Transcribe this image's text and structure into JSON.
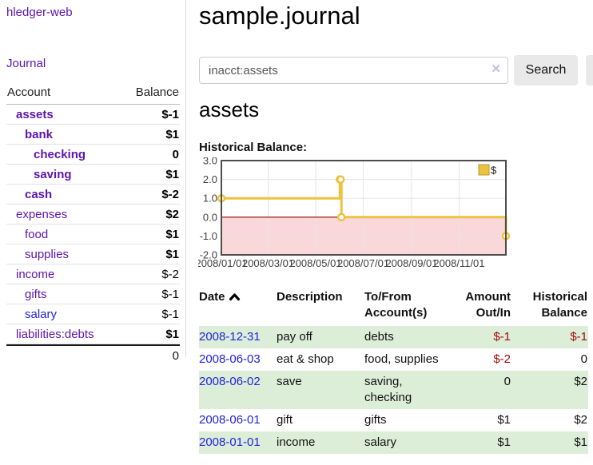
{
  "colors": {
    "purple": "#5c14ae",
    "bluelink": "#2222dd",
    "negstrong": "#a00a0a",
    "negsoft": "#c07c7c",
    "stripe": "#ddeed8"
  },
  "brand": "hledger-web",
  "nav": {
    "journal": "Journal"
  },
  "sidebar": {
    "account_header": "Account",
    "balance_header": "Balance",
    "rows": [
      {
        "account": "assets",
        "balance": "$-1",
        "depth": 1,
        "bold": true,
        "neg": "strong"
      },
      {
        "account": "bank",
        "balance": "$1",
        "depth": 2,
        "bold": true
      },
      {
        "account": "checking",
        "balance": "0",
        "depth": 3,
        "bold": true
      },
      {
        "account": "saving",
        "balance": "$1",
        "depth": 3,
        "bold": true
      },
      {
        "account": "cash",
        "balance": "$-2",
        "depth": 2,
        "bold": true,
        "neg": "strong"
      },
      {
        "account": "expenses",
        "balance": "$2",
        "depth": 1
      },
      {
        "account": "food",
        "balance": "$1",
        "depth": 2
      },
      {
        "account": "supplies",
        "balance": "$1",
        "depth": 2
      },
      {
        "account": "income",
        "balance": "$-2",
        "depth": 1,
        "neg": "soft"
      },
      {
        "account": "gifts",
        "balance": "$-1",
        "depth": 2,
        "neg": "soft"
      },
      {
        "account": "salary",
        "balance": "$-1",
        "depth": 2,
        "neg": "soft",
        "link": "blue"
      },
      {
        "account": "liabilities:debts",
        "balance": "$1",
        "depth": 1
      }
    ],
    "total": "0"
  },
  "main": {
    "title": "sample.journal",
    "account_title": "assets",
    "chart_label": "Historical Balance:"
  },
  "search": {
    "value": "inacct:assets",
    "clear_icon": "✕",
    "button": "Search",
    "help": "?"
  },
  "chart_data": {
    "type": "line",
    "step": true,
    "title": "Historical Balance:",
    "x_start": "2008-01-01",
    "x_end": "2008-12-31",
    "xticks": [
      "2008/01/01",
      "2008/03/01",
      "2008/05/01",
      "2008/07/01",
      "2008/09/01",
      "2008/11/01"
    ],
    "yticks": [
      "3.0",
      "2.0",
      "1.0",
      "0.0",
      "-1.0",
      "-2.0"
    ],
    "ylim": [
      -2,
      3
    ],
    "series": [
      {
        "name": "$",
        "color": "#edc240",
        "points": [
          [
            "2008-01-01",
            1
          ],
          [
            "2008-06-01",
            2
          ],
          [
            "2008-06-02",
            2
          ],
          [
            "2008-06-03",
            0
          ],
          [
            "2008-12-31",
            -1
          ]
        ]
      }
    ],
    "legend_position": "top-right",
    "grid": true,
    "grid_color": "#e5e5e5",
    "border_color": "#4d4d4d",
    "tick_color": "#3f3f3f",
    "zero_line_color": "#8d0000",
    "negative_region_fill": "#fad8da"
  },
  "register": {
    "headers": [
      {
        "l1": "Date",
        "l2": ""
      },
      {
        "l1": "Description",
        "l2": ""
      },
      {
        "l1": "To/From",
        "l2": "Account(s)"
      },
      {
        "l1": "Amount",
        "l2": "Out/In"
      },
      {
        "l1": "Historical",
        "l2": "Balance"
      }
    ],
    "rows": [
      {
        "date": "2008-12-31",
        "description": "pay off",
        "accounts": "debts",
        "amount": "$-1",
        "amount_neg": true,
        "balance": "$-1",
        "balance_neg": true
      },
      {
        "date": "2008-06-03",
        "description": "eat & shop",
        "accounts": "food, supplies",
        "amount": "$-2",
        "amount_neg": true,
        "balance": "0"
      },
      {
        "date": "2008-06-02",
        "description": "save",
        "accounts": "saving, checking",
        "amount": "0",
        "balance": "$2"
      },
      {
        "date": "2008-06-01",
        "description": "gift",
        "accounts": "gifts",
        "amount": "$1",
        "balance": "$2"
      },
      {
        "date": "2008-01-01",
        "description": "income",
        "accounts": "salary",
        "amount": "$1",
        "balance": "$1"
      }
    ]
  }
}
